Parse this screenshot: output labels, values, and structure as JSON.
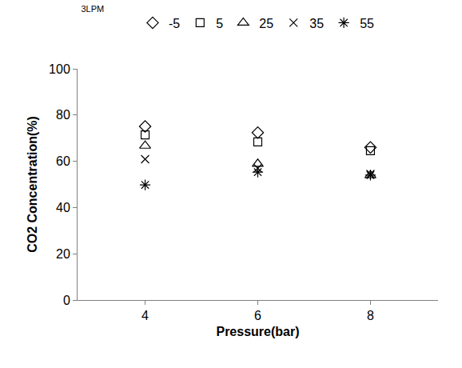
{
  "chart_data": {
    "type": "scatter",
    "title": "3LPM",
    "x_label": "Pressure(bar)",
    "y_label": "CO2 Concentration(%)",
    "categories": [
      "4",
      "6",
      "8"
    ],
    "series": [
      {
        "name": "-5",
        "color": "#000000",
        "marker": "diamond",
        "values": [
          75.1,
          72.4,
          66.0
        ]
      },
      {
        "name": "5",
        "color": "#000000",
        "marker": "square",
        "values": [
          71.4,
          68.4,
          64.6
        ]
      },
      {
        "name": "25",
        "color": "#000000",
        "marker": "triangle",
        "values": [
          66.7,
          58.9,
          53.9
        ]
      },
      {
        "name": "35",
        "color": "#000000",
        "marker": "x",
        "values": [
          60.9,
          57.0,
          54.5
        ]
      },
      {
        "name": "55",
        "color": "#000000",
        "marker": "asterisk",
        "values": [
          49.8,
          55.3,
          54.0
        ]
      }
    ],
    "ylim": [
      0,
      100
    ],
    "yticks": [
      0,
      20,
      40,
      60,
      80,
      100
    ],
    "grid": false,
    "legend": "top"
  }
}
